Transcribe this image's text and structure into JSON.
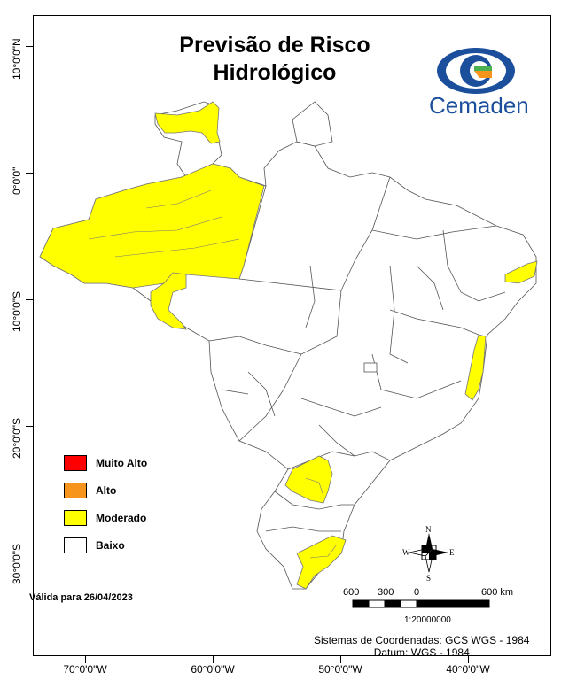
{
  "title": [
    "Previsão de Risco",
    "Hidrológico"
  ],
  "logo": {
    "name": "Cemaden"
  },
  "legend": [
    {
      "label": "Muito Alto",
      "color": "#ff0000"
    },
    {
      "label": "Alto",
      "color": "#f7941d"
    },
    {
      "label": "Moderado",
      "color": "#ffff00"
    },
    {
      "label": "Baixo",
      "color": "#ffffff"
    }
  ],
  "validity": "Válida para 26/04/2023",
  "scale": {
    "labels": [
      "600",
      "300",
      "0",
      "600 km"
    ],
    "ratio": "1:20000000"
  },
  "crs": [
    "Sistemas de Coordenadas: GCS WGS - 1984",
    "Datum: WGS - 1984"
  ],
  "axes": {
    "x_labels": [
      "70°0'0\"W",
      "60°0'0\"W",
      "50°0'0\"W",
      "40°0'0\"W"
    ],
    "y_labels": [
      "10°0'0\"N",
      "0°0'0\"",
      "10°0'0\"S",
      "20°0'0\"S",
      "30°0'0\"S"
    ]
  },
  "compass": {
    "n": "N",
    "s": "S",
    "e": "E",
    "w": "W"
  }
}
